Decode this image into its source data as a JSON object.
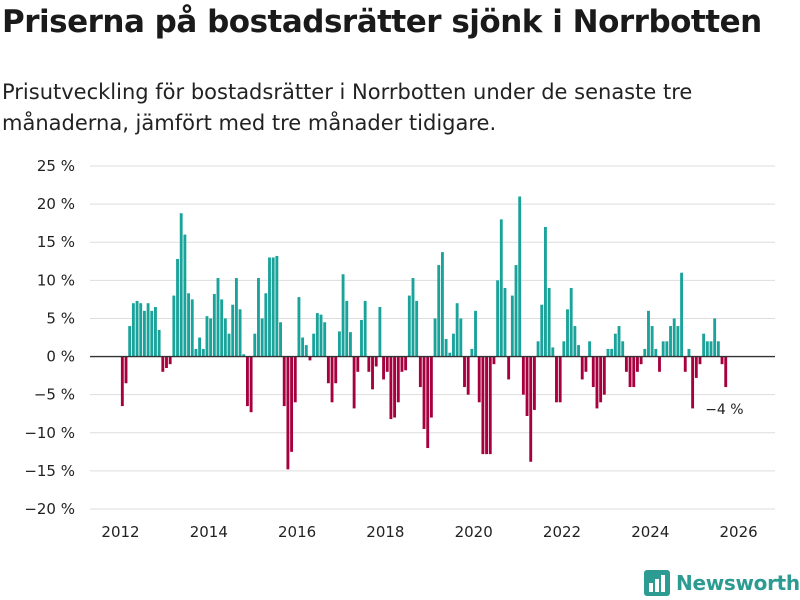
{
  "title": "Priserna på bostadsrätter sjönk i Norrbotten",
  "subtitle": "Prisutveckling för bostadsrätter i Norrbotten under de senaste tre månaderna, jämfört med tre månader tidigare.",
  "brand": "Newsworthy",
  "colors": {
    "positive": "#1aa39a",
    "negative": "#a6003e",
    "grid": "#dddddd",
    "zero": "#333333",
    "brand": "#2c9b92"
  },
  "chart_data": {
    "type": "bar",
    "title": "Priserna på bostadsrätter sjönk i Norrbotten",
    "xlabel": "",
    "ylabel": "",
    "ylim": [
      -20,
      25
    ],
    "y_ticks": [
      25,
      20,
      15,
      10,
      5,
      0,
      -5,
      -10,
      -15,
      -20
    ],
    "y_tick_labels": [
      "25 %",
      "20 %",
      "15 %",
      "10 %",
      "5 %",
      "0 %",
      "−5 %",
      "−10 %",
      "−15 %",
      "−20 %"
    ],
    "x_ticks": [
      "2012",
      "2014",
      "2016",
      "2018",
      "2020",
      "2022",
      "2024",
      "2026"
    ],
    "start": "2012-01",
    "end": "2025-12",
    "values": [
      -6.5,
      -3.5,
      4,
      7,
      7.3,
      7,
      6,
      7,
      6,
      6.5,
      3.5,
      -2,
      -1.5,
      -1,
      8,
      12.8,
      18.8,
      16,
      8.3,
      7.5,
      1,
      2.5,
      1,
      5.3,
      5,
      8.2,
      10.3,
      7.5,
      5,
      3,
      6.8,
      10.3,
      6.2,
      0.3,
      -6.5,
      -7.3,
      3,
      10.3,
      5,
      8.3,
      13,
      13,
      13.2,
      4.5,
      -6.5,
      -14.8,
      -12.5,
      -6,
      7.8,
      2.5,
      1.5,
      -0.5,
      3,
      5.7,
      5.5,
      4.5,
      -3.5,
      -6,
      -3.5,
      3.3,
      10.8,
      7.3,
      3.2,
      -6.8,
      -2,
      4.8,
      7.3,
      -2,
      -4.3,
      -1.3,
      6.5,
      -3,
      -2,
      -8.2,
      -8,
      -6,
      -2,
      -1.8,
      8,
      10.3,
      7.3,
      -4,
      -9.5,
      -12,
      -8,
      5,
      12,
      13.7,
      2.3,
      0.5,
      3,
      7,
      5,
      -4,
      -5,
      1,
      6,
      -6,
      -12.8,
      -12.8,
      -12.8,
      -1,
      10,
      18,
      9,
      -3,
      8,
      12,
      21,
      -5,
      -7.8,
      -13.8,
      -7,
      2,
      6.8,
      17,
      9,
      1.2,
      -6,
      -6,
      2,
      6.2,
      9,
      4,
      1.5,
      -3,
      -2,
      2,
      -4,
      -6.8,
      -6,
      -5,
      1,
      1,
      3,
      4,
      2,
      -2,
      -4,
      -4,
      -2,
      -1,
      1,
      6,
      4,
      1,
      -2,
      2,
      2,
      4,
      5,
      4,
      11,
      -2,
      1,
      -6.8,
      -2.8,
      -1,
      3,
      2,
      2,
      5,
      2,
      -1,
      -4
    ],
    "annotation": {
      "label": "−4 %",
      "target": "last"
    }
  }
}
